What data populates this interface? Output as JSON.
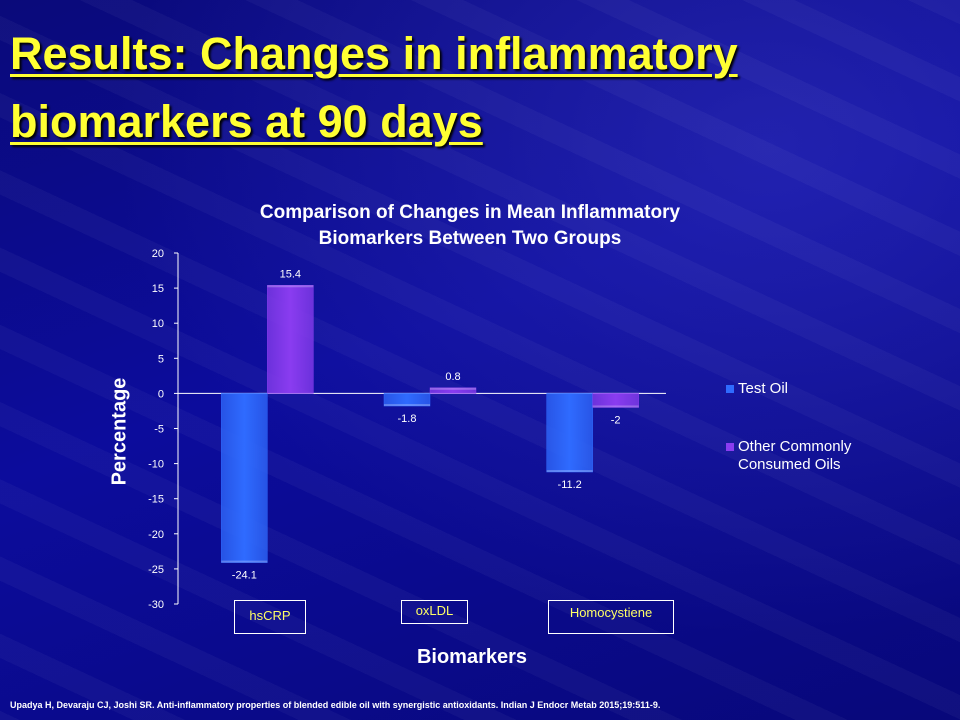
{
  "slide": {
    "title_line1": "Results: Changes in inflammatory",
    "title_line2": "biomarkers at 90 days",
    "citation": "Upadya H, Devaraju CJ, Joshi SR. Anti-inflammatory properties of blended edible oil with synergistic antioxidants. Indian J Endocr Metab 2015;19:511-9."
  },
  "chart_data": {
    "type": "bar",
    "title_line1": "Comparison of Changes in Mean Inflammatory",
    "title_line2": "Biomarkers Between Two Groups",
    "xlabel": "Biomarkers",
    "ylabel": "Percentage",
    "ylim": [
      -30,
      20
    ],
    "yticks": [
      "20",
      "15",
      "10",
      "5",
      "0",
      "-5",
      "-10",
      "-15",
      "-20",
      "-25",
      "-30"
    ],
    "categories": [
      "hsCRP",
      "oxLDL",
      "Homocystiene"
    ],
    "series": [
      {
        "name": "Test Oil",
        "values": [
          -24.1,
          -1.8,
          -11.2
        ],
        "labels": [
          "-24.1",
          "-1.8",
          "-11.2"
        ],
        "color": "#2f6bff"
      },
      {
        "name": "Other Commonly Consumed Oils",
        "values": [
          15.4,
          0.8,
          -2
        ],
        "labels": [
          "15.4",
          "0.8",
          "-2"
        ],
        "color": "#8a3cf0"
      }
    ],
    "legend_position": "right",
    "grid": false
  }
}
